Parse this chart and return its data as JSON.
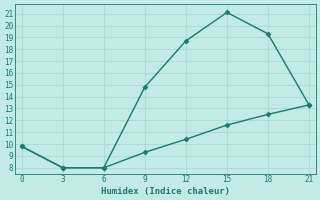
{
  "line1_x": [
    0,
    3,
    6,
    9,
    12,
    15,
    18,
    21
  ],
  "line1_y": [
    9.8,
    8.0,
    8.0,
    14.8,
    18.7,
    21.1,
    19.3,
    13.3
  ],
  "line2_x": [
    0,
    3,
    6,
    9,
    12,
    15,
    18,
    21
  ],
  "line2_y": [
    9.8,
    8.0,
    8.0,
    9.3,
    10.4,
    11.6,
    12.5,
    13.3
  ],
  "color": "#1a7a6e",
  "bg_color": "#c2ebe6",
  "grid_color": "#aad8d2",
  "xlabel": "Humidex (Indice chaleur)",
  "xlim": [
    -0.5,
    21.5
  ],
  "ylim": [
    7.5,
    21.8
  ],
  "xticks": [
    0,
    3,
    6,
    9,
    12,
    15,
    18,
    21
  ],
  "yticks": [
    8,
    9,
    10,
    11,
    12,
    13,
    14,
    15,
    16,
    17,
    18,
    19,
    20,
    21
  ],
  "marker": "D",
  "markersize": 2.5,
  "linewidth": 1.0
}
